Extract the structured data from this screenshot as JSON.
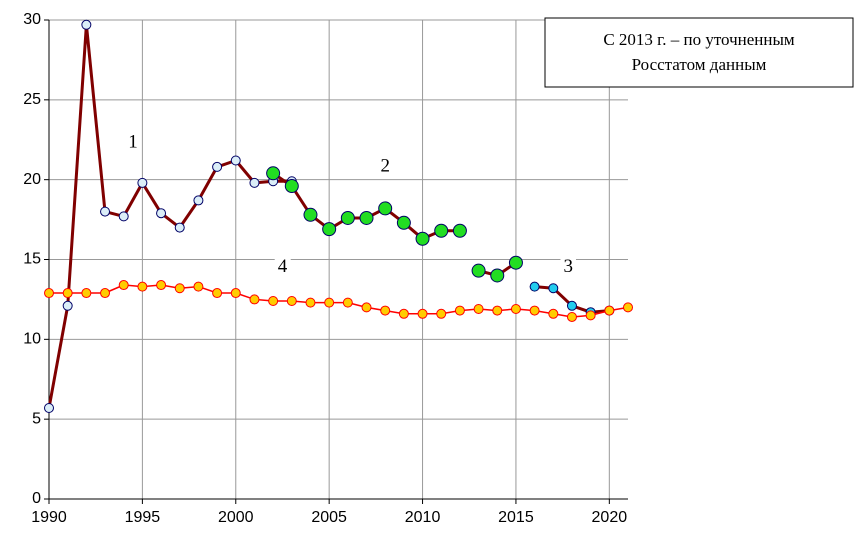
{
  "chart_data": {
    "type": "line",
    "xlim": [
      1990,
      2021
    ],
    "xticks": [
      1990,
      1995,
      2000,
      2005,
      2010,
      2015,
      2020
    ],
    "ylim": [
      0,
      30
    ],
    "yticks": [
      0,
      5,
      10,
      15,
      20,
      25,
      30
    ],
    "grid": true,
    "series": [
      {
        "color": "#800000",
        "marker_color": "#dbeef8",
        "x": [
          1990,
          1991,
          1992,
          1993,
          1994,
          1995,
          1996,
          1997,
          1998,
          1999,
          2000,
          2001,
          2002,
          2003
        ],
        "values": [
          5.7,
          12.1,
          29.7,
          18.0,
          17.7,
          19.8,
          17.9,
          17.0,
          18.7,
          20.8,
          21.2,
          19.8,
          19.9,
          19.9
        ]
      },
      {
        "color": "#800000",
        "marker_color": "#22dd22",
        "x": [
          2002,
          2003,
          2004,
          2005,
          2006,
          2007,
          2008,
          2009,
          2010,
          2011,
          2012
        ],
        "values": [
          20.4,
          19.6,
          17.8,
          16.9,
          17.6,
          17.6,
          18.2,
          17.3,
          16.3,
          16.8,
          16.8
        ]
      },
      {
        "color": "#800000",
        "marker_color": "#22dd22",
        "x": [
          2013,
          2014,
          2015
        ],
        "values": [
          14.3,
          14.0,
          14.8
        ]
      },
      {
        "color": "#800000",
        "marker_color": "#22ccee",
        "x": [
          2016,
          2017,
          2018,
          2019,
          2020
        ],
        "values": [
          13.3,
          13.2,
          12.1,
          11.7,
          11.8
        ]
      },
      {
        "color": "#ff0000",
        "marker_color": "#ffcc00",
        "x": [
          1990,
          1991,
          1992,
          1993,
          1994,
          1995,
          1996,
          1997,
          1998,
          1999,
          2000,
          2001,
          2002,
          2003,
          2004,
          2005,
          2006,
          2007,
          2008,
          2009,
          2010,
          2011,
          2012,
          2013,
          2014,
          2015,
          2016,
          2017,
          2018,
          2019,
          2020,
          2021
        ],
        "values": [
          12.9,
          12.9,
          12.9,
          12.9,
          13.4,
          13.3,
          13.4,
          13.2,
          13.3,
          12.9,
          12.9,
          12.5,
          12.4,
          12.4,
          12.3,
          12.3,
          12.3,
          12.0,
          11.8,
          11.6,
          11.6,
          11.6,
          11.8,
          11.9,
          11.8,
          11.9,
          11.8,
          11.6,
          11.4,
          11.5,
          11.8,
          12.0
        ]
      }
    ],
    "annotations": [
      {
        "text": "1",
        "x": 1994.5,
        "y": 22.3
      },
      {
        "text": "2",
        "x": 2008,
        "y": 20.8
      },
      {
        "text": "3",
        "x": 2017.8,
        "y": 14.5
      },
      {
        "text": "4",
        "x": 2002.5,
        "y": 14.5
      }
    ],
    "note": [
      "С 2013 г. – по уточненным",
      "Росстатом данным"
    ]
  }
}
